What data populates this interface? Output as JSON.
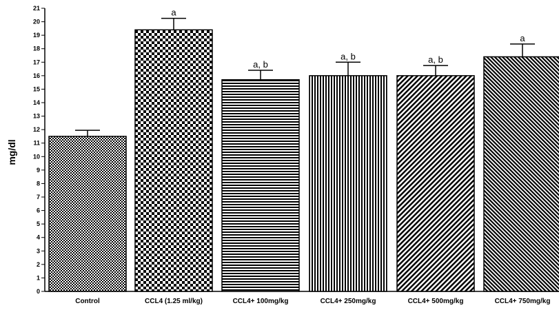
{
  "chart_data": {
    "type": "bar",
    "title": "",
    "xlabel": "",
    "ylabel": "mg/dl",
    "ylim": [
      0,
      21
    ],
    "yticks": [
      0,
      1,
      2,
      3,
      4,
      5,
      6,
      7,
      8,
      9,
      10,
      11,
      12,
      13,
      14,
      15,
      16,
      17,
      18,
      19,
      20,
      21
    ],
    "grid": false,
    "categories": [
      "Control",
      "CCL4 (1.25 ml/kg)",
      "CCL4+ 100mg/kg",
      "CCL4+ 250mg/kg",
      "CCL4+ 500mg/kg",
      "CCL4+ 750mg/kg"
    ],
    "values": [
      11.5,
      19.4,
      15.7,
      16.0,
      16.0,
      17.4
    ],
    "errors": [
      0.45,
      0.85,
      0.7,
      1.0,
      0.75,
      0.95
    ],
    "significance_labels": [
      "",
      "a",
      "a, b",
      "a, b",
      "a, b",
      "a"
    ],
    "fill_patterns": [
      "fine-checker",
      "coarse-checker",
      "horizontal-lines",
      "vertical-lines",
      "diagonal-lines",
      "diagonal-lines-dense"
    ],
    "colors": {
      "ink": "#000000",
      "background": "#ffffff"
    }
  }
}
